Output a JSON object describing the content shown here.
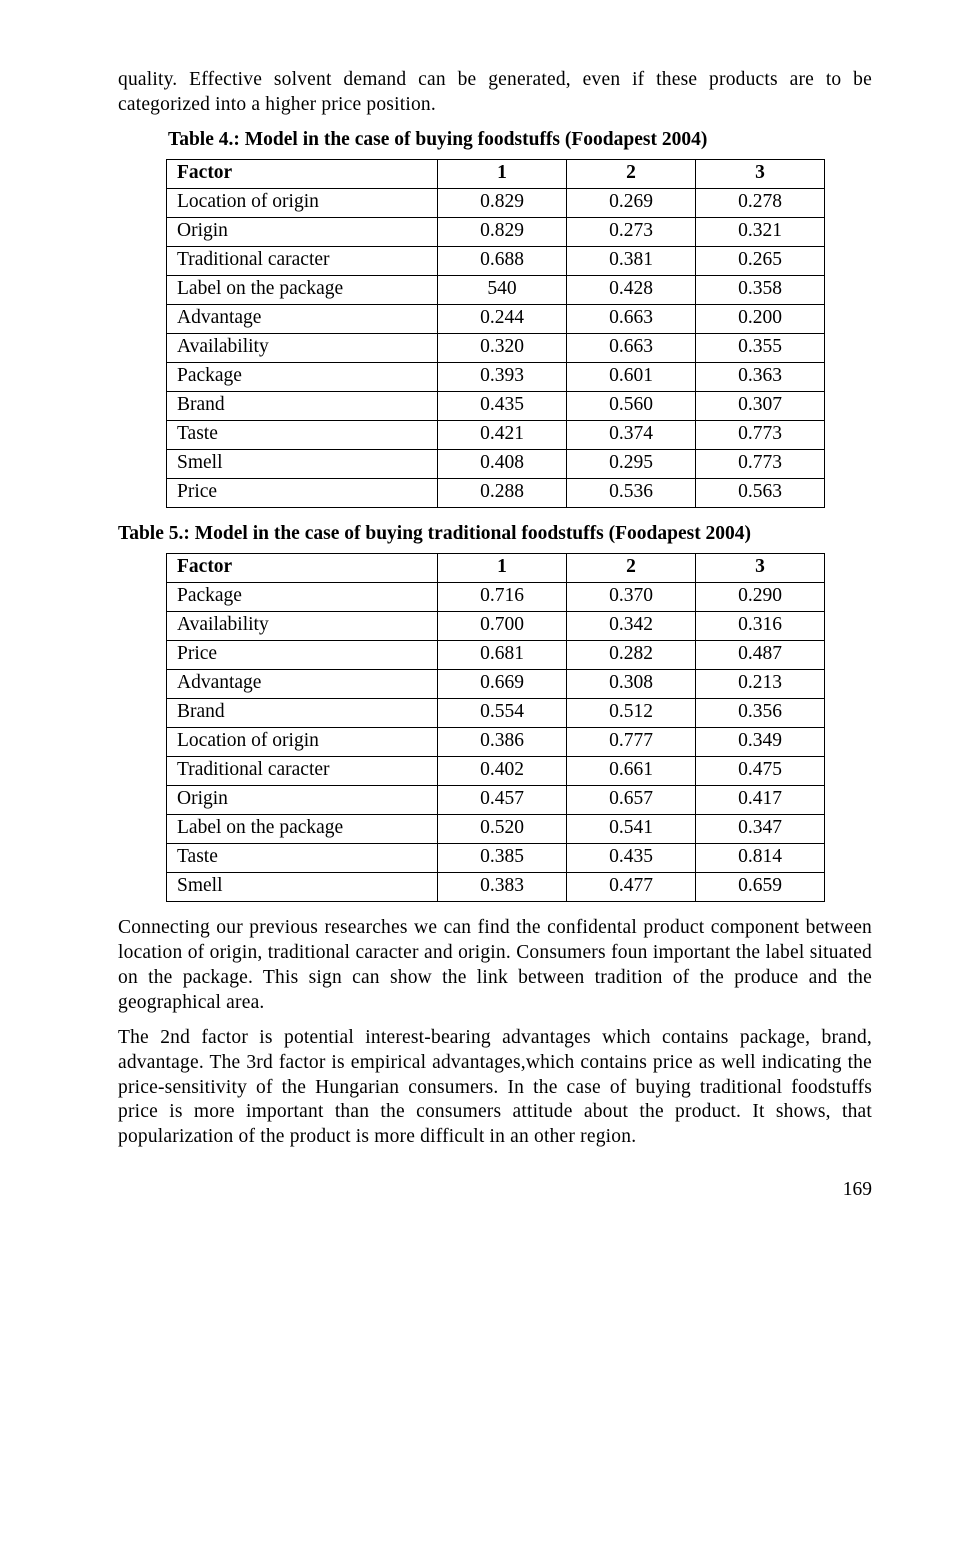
{
  "intro": "quality. Effective solvent demand can be generated, even if these products are to be categorized into a higher price position.",
  "table4": {
    "caption": "Table 4.: Model in the case of buying foodstuffs (Foodapest 2004)",
    "header": [
      "Factor",
      "1",
      "2",
      "3"
    ],
    "rows": [
      [
        "Location of origin",
        "0.829",
        "0.269",
        "0.278"
      ],
      [
        "Origin",
        "0.829",
        "0.273",
        "0.321"
      ],
      [
        "Traditional caracter",
        "0.688",
        "0.381",
        "0.265"
      ],
      [
        "Label on the package",
        "540",
        "0.428",
        "0.358"
      ],
      [
        "Advantage",
        "0.244",
        "0.663",
        "0.200"
      ],
      [
        "Availability",
        "0.320",
        "0.663",
        "0.355"
      ],
      [
        "Package",
        "0.393",
        "0.601",
        "0.363"
      ],
      [
        "Brand",
        "0.435",
        "0.560",
        "0.307"
      ],
      [
        "Taste",
        "0.421",
        "0.374",
        "0.773"
      ],
      [
        "Smell",
        "0.408",
        "0.295",
        "0.773"
      ],
      [
        "Price",
        "0.288",
        "0.536",
        "0.563"
      ]
    ]
  },
  "table5": {
    "caption": "Table 5.: Model in the case of buying traditional foodstuffs (Foodapest 2004)",
    "header": [
      "Factor",
      "1",
      "2",
      "3"
    ],
    "rows": [
      [
        "Package",
        "0.716",
        "0.370",
        "0.290"
      ],
      [
        "Availability",
        "0.700",
        "0.342",
        "0.316"
      ],
      [
        "Price",
        "0.681",
        "0.282",
        "0.487"
      ],
      [
        "Advantage",
        "0.669",
        "0.308",
        "0.213"
      ],
      [
        "Brand",
        "0.554",
        "0.512",
        "0.356"
      ],
      [
        "Location of origin",
        "0.386",
        "0.777",
        "0.349"
      ],
      [
        "Traditional caracter",
        "0.402",
        "0.661",
        "0.475"
      ],
      [
        "Origin",
        "0.457",
        "0.657",
        "0.417"
      ],
      [
        "Label on the package",
        "0.520",
        "0.541",
        "0.347"
      ],
      [
        "Taste",
        "0.385",
        "0.435",
        "0.814"
      ],
      [
        "Smell",
        "0.383",
        "0.477",
        "0.659"
      ]
    ]
  },
  "para1": "Connecting our previous researches we can find the confidental product component between location of origin, traditional caracter and origin. Consumers foun important the label situated on the package. This sign can show the link between tradition of the produce and the geographical area.",
  "para2": "The 2nd factor is potential interest-bearing advantages which contains package, brand, advantage. The 3rd factor is empirical advantages,which contains price as well indicating the price-sensitivity of the Hungarian consumers. In the case of buying traditional foodstuffs price is more important than the consumers attitude about the product. It shows, that popularization of the product is more difficult in an other region.",
  "page_number": "169"
}
